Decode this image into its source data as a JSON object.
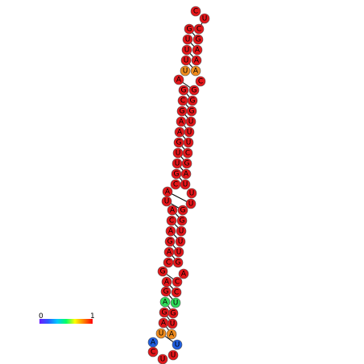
{
  "legend": {
    "min_label": "0",
    "max_label": "1",
    "gradient_colors": [
      "#6a1cff",
      "#2a5cff",
      "#00c8ff",
      "#00ff66",
      "#ffff00",
      "#ff8000",
      "#ff0000"
    ]
  },
  "pair_line_color": "#000000",
  "outline_color": "#555555",
  "nucleotides": [
    {
      "base": "C",
      "color": "#e3161a"
    },
    {
      "base": "U",
      "color": "#e3161a"
    },
    {
      "base": "G",
      "color": "#e3161a"
    },
    {
      "base": "U",
      "color": "#e3161a"
    },
    {
      "base": "U",
      "color": "#e3161a"
    },
    {
      "base": "U",
      "color": "#e3161a"
    },
    {
      "base": "U",
      "color": "#f08c1e"
    },
    {
      "base": "A",
      "color": "#e3161a"
    },
    {
      "base": "G",
      "color": "#e3161a"
    },
    {
      "base": "C",
      "color": "#e3161a"
    },
    {
      "base": "G",
      "color": "#e3161a"
    },
    {
      "base": "A",
      "color": "#e3161a"
    },
    {
      "base": "A",
      "color": "#e3161a"
    },
    {
      "base": "G",
      "color": "#e3161a"
    },
    {
      "base": "U",
      "color": "#e3161a"
    },
    {
      "base": "U",
      "color": "#e3161a"
    },
    {
      "base": "G",
      "color": "#e3161a"
    },
    {
      "base": "C",
      "color": "#e3161a"
    },
    {
      "base": "A",
      "color": "#e3161a"
    },
    {
      "base": "U",
      "color": "#e3161a"
    },
    {
      "base": "A",
      "color": "#e3161a"
    },
    {
      "base": "C",
      "color": "#e3161a"
    },
    {
      "base": "A",
      "color": "#e3161a"
    },
    {
      "base": "G",
      "color": "#e3161a"
    },
    {
      "base": "A",
      "color": "#e3161a"
    },
    {
      "base": "C",
      "color": "#e3161a"
    },
    {
      "base": "G",
      "color": "#e3161a"
    },
    {
      "base": "A",
      "color": "#e3161a"
    },
    {
      "base": "G",
      "color": "#e3161a"
    },
    {
      "base": "A",
      "color": "#2fdc5a"
    },
    {
      "base": "G",
      "color": "#e3161a"
    },
    {
      "base": "A",
      "color": "#e3161a"
    },
    {
      "base": "U",
      "color": "#f08c1e"
    },
    {
      "base": "A",
      "color": "#1f5ee0"
    },
    {
      "base": "C",
      "color": "#e3161a"
    },
    {
      "base": "U",
      "color": "#e3161a"
    },
    {
      "base": "U",
      "color": "#e3161a"
    },
    {
      "base": "U",
      "color": "#1f5ee0"
    },
    {
      "base": "A",
      "color": "#f08c1e"
    },
    {
      "base": "U",
      "color": "#e3161a"
    },
    {
      "base": "G",
      "color": "#e3161a"
    },
    {
      "base": "U",
      "color": "#2fdc5a"
    },
    {
      "base": "C",
      "color": "#e3161a"
    },
    {
      "base": "C",
      "color": "#e3161a"
    },
    {
      "base": "A",
      "color": "#e3161a"
    },
    {
      "base": "G",
      "color": "#e3161a"
    },
    {
      "base": "U",
      "color": "#e3161a"
    },
    {
      "base": "U",
      "color": "#e3161a"
    },
    {
      "base": "U",
      "color": "#e3161a"
    },
    {
      "base": "G",
      "color": "#e3161a"
    },
    {
      "base": "G",
      "color": "#e3161a"
    },
    {
      "base": "U",
      "color": "#e3161a"
    },
    {
      "base": "U",
      "color": "#e3161a"
    },
    {
      "base": "U",
      "color": "#e3161a"
    },
    {
      "base": "A",
      "color": "#e3161a"
    },
    {
      "base": "G",
      "color": "#e3161a"
    },
    {
      "base": "C",
      "color": "#e3161a"
    },
    {
      "base": "U",
      "color": "#e3161a"
    },
    {
      "base": "U",
      "color": "#e3161a"
    },
    {
      "base": "U",
      "color": "#e3161a"
    },
    {
      "base": "G",
      "color": "#e3161a"
    },
    {
      "base": "G",
      "color": "#e3161a"
    },
    {
      "base": "G",
      "color": "#e3161a"
    },
    {
      "base": "C",
      "color": "#e3161a"
    },
    {
      "base": "A",
      "color": "#f08c1e"
    },
    {
      "base": "A",
      "color": "#e3161a"
    },
    {
      "base": "A",
      "color": "#e3161a"
    },
    {
      "base": "G",
      "color": "#e3161a"
    },
    {
      "base": "C",
      "color": "#e3161a"
    }
  ],
  "pairs": [
    [
      2,
      69
    ],
    [
      3,
      68
    ],
    [
      4,
      67
    ],
    [
      5,
      66
    ],
    [
      6,
      65
    ],
    [
      8,
      63
    ],
    [
      9,
      62
    ],
    [
      10,
      61
    ],
    [
      11,
      60
    ],
    [
      12,
      59
    ],
    [
      13,
      58
    ],
    [
      14,
      57
    ],
    [
      15,
      56
    ],
    [
      16,
      55
    ],
    [
      17,
      54
    ],
    [
      19,
      52
    ],
    [
      20,
      51
    ],
    [
      21,
      50
    ],
    [
      22,
      49
    ],
    [
      23,
      48
    ],
    [
      24,
      47
    ],
    [
      25,
      46
    ],
    [
      27,
      44
    ],
    [
      28,
      43
    ],
    [
      29,
      42
    ],
    [
      30,
      41
    ],
    [
      31,
      40
    ],
    [
      32,
      39
    ],
    [
      33,
      38
    ]
  ]
}
